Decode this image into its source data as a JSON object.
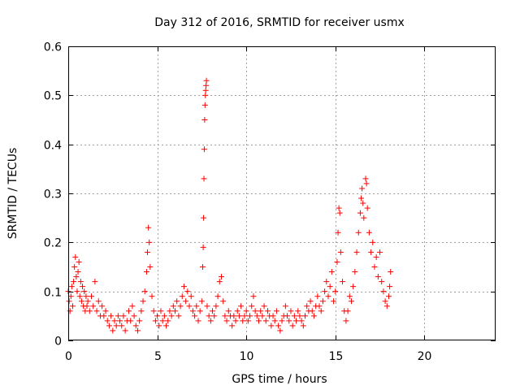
{
  "chart_data": {
    "type": "scatter",
    "title": "Day 312 of 2016, SRMTID for receiver usmx",
    "xlabel": "GPS time / hours",
    "ylabel": "SRMTID / TECUs",
    "xlim": [
      0,
      24
    ],
    "ylim": [
      0,
      0.6
    ],
    "xticks": [
      "0",
      "5",
      "10",
      "15",
      "20"
    ],
    "yticks": [
      "0",
      "0.1",
      "0.2",
      "0.3",
      "0.4",
      "0.5",
      "0.6"
    ],
    "xtick_values": [
      0,
      5,
      10,
      15,
      20
    ],
    "ytick_values": [
      0,
      0.1,
      0.2,
      0.3,
      0.4,
      0.5,
      0.6
    ],
    "grid": true,
    "marker": "+",
    "color": "#ff0000",
    "series": [
      {
        "name": "SRMTID",
        "points": [
          [
            0.0,
            0.1
          ],
          [
            0.05,
            0.08
          ],
          [
            0.1,
            0.06
          ],
          [
            0.15,
            0.09
          ],
          [
            0.2,
            0.11
          ],
          [
            0.25,
            0.07
          ],
          [
            0.3,
            0.12
          ],
          [
            0.35,
            0.15
          ],
          [
            0.4,
            0.17
          ],
          [
            0.45,
            0.13
          ],
          [
            0.5,
            0.1
          ],
          [
            0.55,
            0.14
          ],
          [
            0.6,
            0.16
          ],
          [
            0.65,
            0.09
          ],
          [
            0.7,
            0.12
          ],
          [
            0.75,
            0.08
          ],
          [
            0.8,
            0.11
          ],
          [
            0.85,
            0.07
          ],
          [
            0.9,
            0.1
          ],
          [
            0.95,
            0.06
          ],
          [
            1.0,
            0.09
          ],
          [
            1.05,
            0.07
          ],
          [
            1.1,
            0.08
          ],
          [
            1.2,
            0.06
          ],
          [
            1.3,
            0.09
          ],
          [
            1.4,
            0.07
          ],
          [
            1.5,
            0.12
          ],
          [
            1.6,
            0.06
          ],
          [
            1.7,
            0.08
          ],
          [
            1.8,
            0.05
          ],
          [
            1.9,
            0.07
          ],
          [
            2.0,
            0.05
          ],
          [
            2.1,
            0.06
          ],
          [
            2.2,
            0.04
          ],
          [
            2.3,
            0.03
          ],
          [
            2.4,
            0.05
          ],
          [
            2.5,
            0.02
          ],
          [
            2.6,
            0.04
          ],
          [
            2.7,
            0.03
          ],
          [
            2.8,
            0.05
          ],
          [
            2.9,
            0.04
          ],
          [
            3.0,
            0.03
          ],
          [
            3.1,
            0.05
          ],
          [
            3.2,
            0.02
          ],
          [
            3.3,
            0.04
          ],
          [
            3.4,
            0.06
          ],
          [
            3.5,
            0.04
          ],
          [
            3.6,
            0.07
          ],
          [
            3.7,
            0.05
          ],
          [
            3.8,
            0.03
          ],
          [
            3.9,
            0.02
          ],
          [
            4.0,
            0.04
          ],
          [
            4.1,
            0.06
          ],
          [
            4.2,
            0.08
          ],
          [
            4.3,
            0.1
          ],
          [
            4.4,
            0.14
          ],
          [
            4.45,
            0.18
          ],
          [
            4.5,
            0.23
          ],
          [
            4.55,
            0.2
          ],
          [
            4.6,
            0.15
          ],
          [
            4.7,
            0.09
          ],
          [
            4.8,
            0.06
          ],
          [
            4.9,
            0.04
          ],
          [
            5.0,
            0.05
          ],
          [
            5.1,
            0.03
          ],
          [
            5.2,
            0.06
          ],
          [
            5.3,
            0.04
          ],
          [
            5.4,
            0.05
          ],
          [
            5.5,
            0.03
          ],
          [
            5.6,
            0.04
          ],
          [
            5.7,
            0.06
          ],
          [
            5.8,
            0.05
          ],
          [
            5.9,
            0.07
          ],
          [
            6.0,
            0.06
          ],
          [
            6.1,
            0.08
          ],
          [
            6.2,
            0.05
          ],
          [
            6.3,
            0.07
          ],
          [
            6.4,
            0.09
          ],
          [
            6.5,
            0.11
          ],
          [
            6.6,
            0.08
          ],
          [
            6.7,
            0.1
          ],
          [
            6.8,
            0.07
          ],
          [
            6.9,
            0.09
          ],
          [
            7.0,
            0.06
          ],
          [
            7.1,
            0.05
          ],
          [
            7.2,
            0.07
          ],
          [
            7.3,
            0.04
          ],
          [
            7.4,
            0.06
          ],
          [
            7.5,
            0.08
          ],
          [
            7.55,
            0.15
          ],
          [
            7.58,
            0.19
          ],
          [
            7.6,
            0.25
          ],
          [
            7.62,
            0.33
          ],
          [
            7.64,
            0.39
          ],
          [
            7.66,
            0.45
          ],
          [
            7.68,
            0.48
          ],
          [
            7.7,
            0.5
          ],
          [
            7.72,
            0.51
          ],
          [
            7.74,
            0.52
          ],
          [
            7.76,
            0.53
          ],
          [
            7.8,
            0.07
          ],
          [
            7.9,
            0.05
          ],
          [
            8.0,
            0.04
          ],
          [
            8.1,
            0.06
          ],
          [
            8.2,
            0.05
          ],
          [
            8.3,
            0.07
          ],
          [
            8.4,
            0.09
          ],
          [
            8.5,
            0.12
          ],
          [
            8.6,
            0.13
          ],
          [
            8.7,
            0.08
          ],
          [
            8.8,
            0.05
          ],
          [
            8.9,
            0.04
          ],
          [
            9.0,
            0.06
          ],
          [
            9.1,
            0.05
          ],
          [
            9.2,
            0.03
          ],
          [
            9.3,
            0.05
          ],
          [
            9.4,
            0.04
          ],
          [
            9.5,
            0.06
          ],
          [
            9.6,
            0.05
          ],
          [
            9.7,
            0.07
          ],
          [
            9.8,
            0.04
          ],
          [
            9.9,
            0.05
          ],
          [
            10.0,
            0.06
          ],
          [
            10.1,
            0.04
          ],
          [
            10.2,
            0.05
          ],
          [
            10.3,
            0.07
          ],
          [
            10.4,
            0.09
          ],
          [
            10.5,
            0.06
          ],
          [
            10.6,
            0.05
          ],
          [
            10.7,
            0.04
          ],
          [
            10.8,
            0.06
          ],
          [
            10.9,
            0.05
          ],
          [
            11.0,
            0.07
          ],
          [
            11.1,
            0.04
          ],
          [
            11.2,
            0.06
          ],
          [
            11.3,
            0.05
          ],
          [
            11.4,
            0.03
          ],
          [
            11.5,
            0.05
          ],
          [
            11.6,
            0.04
          ],
          [
            11.7,
            0.06
          ],
          [
            11.8,
            0.03
          ],
          [
            11.9,
            0.02
          ],
          [
            12.0,
            0.04
          ],
          [
            12.1,
            0.05
          ],
          [
            12.2,
            0.07
          ],
          [
            12.3,
            0.05
          ],
          [
            12.4,
            0.04
          ],
          [
            12.5,
            0.06
          ],
          [
            12.6,
            0.03
          ],
          [
            12.7,
            0.05
          ],
          [
            12.8,
            0.04
          ],
          [
            12.9,
            0.06
          ],
          [
            13.0,
            0.05
          ],
          [
            13.1,
            0.04
          ],
          [
            13.2,
            0.03
          ],
          [
            13.3,
            0.05
          ],
          [
            13.4,
            0.07
          ],
          [
            13.5,
            0.06
          ],
          [
            13.6,
            0.08
          ],
          [
            13.7,
            0.06
          ],
          [
            13.8,
            0.05
          ],
          [
            13.9,
            0.07
          ],
          [
            14.0,
            0.09
          ],
          [
            14.1,
            0.07
          ],
          [
            14.2,
            0.06
          ],
          [
            14.3,
            0.08
          ],
          [
            14.4,
            0.1
          ],
          [
            14.5,
            0.12
          ],
          [
            14.6,
            0.09
          ],
          [
            14.7,
            0.11
          ],
          [
            14.8,
            0.14
          ],
          [
            14.9,
            0.08
          ],
          [
            15.0,
            0.1
          ],
          [
            15.1,
            0.16
          ],
          [
            15.15,
            0.22
          ],
          [
            15.2,
            0.27
          ],
          [
            15.25,
            0.26
          ],
          [
            15.3,
            0.18
          ],
          [
            15.4,
            0.12
          ],
          [
            15.5,
            0.06
          ],
          [
            15.6,
            0.04
          ],
          [
            15.7,
            0.06
          ],
          [
            15.8,
            0.09
          ],
          [
            15.9,
            0.08
          ],
          [
            16.0,
            0.11
          ],
          [
            16.1,
            0.14
          ],
          [
            16.2,
            0.18
          ],
          [
            16.3,
            0.22
          ],
          [
            16.4,
            0.26
          ],
          [
            16.45,
            0.29
          ],
          [
            16.5,
            0.31
          ],
          [
            16.55,
            0.28
          ],
          [
            16.6,
            0.25
          ],
          [
            16.7,
            0.33
          ],
          [
            16.75,
            0.32
          ],
          [
            16.8,
            0.27
          ],
          [
            16.9,
            0.22
          ],
          [
            17.0,
            0.18
          ],
          [
            17.1,
            0.2
          ],
          [
            17.2,
            0.15
          ],
          [
            17.3,
            0.17
          ],
          [
            17.4,
            0.13
          ],
          [
            17.5,
            0.18
          ],
          [
            17.6,
            0.12
          ],
          [
            17.7,
            0.1
          ],
          [
            17.8,
            0.08
          ],
          [
            17.9,
            0.07
          ],
          [
            18.0,
            0.09
          ],
          [
            18.05,
            0.11
          ],
          [
            18.1,
            0.14
          ]
        ]
      }
    ]
  }
}
